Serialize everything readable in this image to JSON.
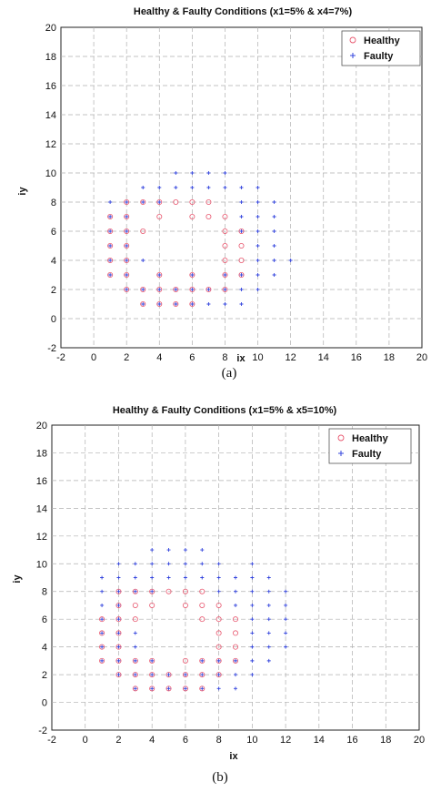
{
  "chart_data": [
    {
      "type": "scatter",
      "title": "Healthy & Faulty Conditions (x1=5% & x4=7%)",
      "xlabel": "ix",
      "ylabel": "iy",
      "caption": "(a)",
      "xlim": [
        -2,
        20
      ],
      "ylim": [
        -2,
        20
      ],
      "xticks": [
        -2,
        0,
        2,
        4,
        6,
        8,
        10,
        12,
        14,
        16,
        18,
        20
      ],
      "yticks": [
        -2,
        0,
        2,
        4,
        6,
        8,
        10,
        12,
        14,
        16,
        18,
        20
      ],
      "grid": true,
      "legend_position": "top-right",
      "series": [
        {
          "name": "Healthy",
          "marker": "circle",
          "color": "#e8566e",
          "points": [
            [
              1,
              3
            ],
            [
              1,
              4
            ],
            [
              1,
              5
            ],
            [
              1,
              6
            ],
            [
              1,
              7
            ],
            [
              2,
              2
            ],
            [
              2,
              3
            ],
            [
              2,
              4
            ],
            [
              2,
              5
            ],
            [
              2,
              6
            ],
            [
              2,
              7
            ],
            [
              2,
              8
            ],
            [
              3,
              1
            ],
            [
              3,
              2
            ],
            [
              3,
              6
            ],
            [
              3,
              8
            ],
            [
              4,
              1
            ],
            [
              4,
              2
            ],
            [
              4,
              3
            ],
            [
              4,
              7
            ],
            [
              4,
              8
            ],
            [
              5,
              1
            ],
            [
              5,
              2
            ],
            [
              5,
              8
            ],
            [
              6,
              1
            ],
            [
              6,
              2
            ],
            [
              6,
              3
            ],
            [
              6,
              7
            ],
            [
              6,
              8
            ],
            [
              7,
              2
            ],
            [
              7,
              7
            ],
            [
              7,
              8
            ],
            [
              8,
              2
            ],
            [
              8,
              3
            ],
            [
              8,
              4
            ],
            [
              8,
              5
            ],
            [
              8,
              6
            ],
            [
              8,
              7
            ],
            [
              9,
              3
            ],
            [
              9,
              4
            ],
            [
              9,
              5
            ],
            [
              9,
              6
            ]
          ]
        },
        {
          "name": "Faulty",
          "marker": "plus",
          "color": "#3344dd",
          "points": [
            [
              1,
              3
            ],
            [
              1,
              4
            ],
            [
              1,
              5
            ],
            [
              1,
              6
            ],
            [
              1,
              7
            ],
            [
              1,
              8
            ],
            [
              2,
              2
            ],
            [
              2,
              3
            ],
            [
              2,
              4
            ],
            [
              2,
              5
            ],
            [
              2,
              6
            ],
            [
              2,
              7
            ],
            [
              2,
              8
            ],
            [
              3,
              1
            ],
            [
              3,
              2
            ],
            [
              3,
              4
            ],
            [
              3,
              8
            ],
            [
              3,
              9
            ],
            [
              4,
              1
            ],
            [
              4,
              2
            ],
            [
              4,
              3
            ],
            [
              4,
              8
            ],
            [
              4,
              9
            ],
            [
              5,
              1
            ],
            [
              5,
              2
            ],
            [
              5,
              9
            ],
            [
              5,
              10
            ],
            [
              6,
              1
            ],
            [
              6,
              2
            ],
            [
              6,
              3
            ],
            [
              6,
              9
            ],
            [
              6,
              10
            ],
            [
              7,
              1
            ],
            [
              7,
              2
            ],
            [
              7,
              9
            ],
            [
              7,
              10
            ],
            [
              8,
              1
            ],
            [
              8,
              2
            ],
            [
              8,
              3
            ],
            [
              8,
              9
            ],
            [
              8,
              10
            ],
            [
              9,
              1
            ],
            [
              9,
              2
            ],
            [
              9,
              3
            ],
            [
              9,
              6
            ],
            [
              9,
              7
            ],
            [
              9,
              8
            ],
            [
              9,
              9
            ],
            [
              10,
              2
            ],
            [
              10,
              3
            ],
            [
              10,
              4
            ],
            [
              10,
              5
            ],
            [
              10,
              6
            ],
            [
              10,
              7
            ],
            [
              10,
              8
            ],
            [
              10,
              9
            ],
            [
              11,
              3
            ],
            [
              11,
              4
            ],
            [
              11,
              5
            ],
            [
              11,
              6
            ],
            [
              11,
              7
            ],
            [
              11,
              8
            ],
            [
              12,
              4
            ]
          ]
        }
      ]
    },
    {
      "type": "scatter",
      "title": "Healthy & Faulty Conditions (x1=5% & x5=10%)",
      "xlabel": "ix",
      "ylabel": "iy",
      "caption": "(b)",
      "xlim": [
        -2,
        20
      ],
      "ylim": [
        -2,
        20
      ],
      "xticks": [
        -2,
        0,
        2,
        4,
        6,
        8,
        10,
        12,
        14,
        16,
        18,
        20
      ],
      "yticks": [
        -2,
        0,
        2,
        4,
        6,
        8,
        10,
        12,
        14,
        16,
        18,
        20
      ],
      "grid": true,
      "legend_position": "top-right",
      "series": [
        {
          "name": "Healthy",
          "marker": "circle",
          "color": "#e8566e",
          "points": [
            [
              1,
              3
            ],
            [
              1,
              4
            ],
            [
              1,
              5
            ],
            [
              1,
              6
            ],
            [
              2,
              2
            ],
            [
              2,
              3
            ],
            [
              2,
              4
            ],
            [
              2,
              5
            ],
            [
              2,
              6
            ],
            [
              2,
              7
            ],
            [
              2,
              8
            ],
            [
              3,
              1
            ],
            [
              3,
              2
            ],
            [
              3,
              3
            ],
            [
              3,
              6
            ],
            [
              3,
              7
            ],
            [
              3,
              8
            ],
            [
              4,
              1
            ],
            [
              4,
              2
            ],
            [
              4,
              3
            ],
            [
              4,
              7
            ],
            [
              4,
              8
            ],
            [
              5,
              1
            ],
            [
              5,
              2
            ],
            [
              5,
              8
            ],
            [
              6,
              1
            ],
            [
              6,
              2
            ],
            [
              6,
              3
            ],
            [
              6,
              7
            ],
            [
              6,
              8
            ],
            [
              7,
              1
            ],
            [
              7,
              2
            ],
            [
              7,
              3
            ],
            [
              7,
              6
            ],
            [
              7,
              7
            ],
            [
              7,
              8
            ],
            [
              8,
              2
            ],
            [
              8,
              3
            ],
            [
              8,
              4
            ],
            [
              8,
              5
            ],
            [
              8,
              6
            ],
            [
              8,
              7
            ],
            [
              9,
              3
            ],
            [
              9,
              4
            ],
            [
              9,
              5
            ],
            [
              9,
              6
            ]
          ]
        },
        {
          "name": "Faulty",
          "marker": "plus",
          "color": "#3344dd",
          "points": [
            [
              1,
              3
            ],
            [
              1,
              4
            ],
            [
              1,
              5
            ],
            [
              1,
              6
            ],
            [
              1,
              7
            ],
            [
              1,
              8
            ],
            [
              1,
              9
            ],
            [
              2,
              2
            ],
            [
              2,
              3
            ],
            [
              2,
              4
            ],
            [
              2,
              5
            ],
            [
              2,
              6
            ],
            [
              2,
              7
            ],
            [
              2,
              8
            ],
            [
              2,
              9
            ],
            [
              2,
              10
            ],
            [
              3,
              1
            ],
            [
              3,
              2
            ],
            [
              3,
              3
            ],
            [
              3,
              4
            ],
            [
              3,
              5
            ],
            [
              3,
              8
            ],
            [
              3,
              9
            ],
            [
              3,
              10
            ],
            [
              4,
              1
            ],
            [
              4,
              2
            ],
            [
              4,
              3
            ],
            [
              4,
              8
            ],
            [
              4,
              9
            ],
            [
              4,
              10
            ],
            [
              4,
              11
            ],
            [
              5,
              1
            ],
            [
              5,
              2
            ],
            [
              5,
              9
            ],
            [
              5,
              10
            ],
            [
              5,
              11
            ],
            [
              6,
              1
            ],
            [
              6,
              2
            ],
            [
              6,
              9
            ],
            [
              6,
              10
            ],
            [
              6,
              11
            ],
            [
              7,
              1
            ],
            [
              7,
              2
            ],
            [
              7,
              3
            ],
            [
              7,
              9
            ],
            [
              7,
              10
            ],
            [
              7,
              11
            ],
            [
              8,
              1
            ],
            [
              8,
              2
            ],
            [
              8,
              3
            ],
            [
              8,
              8
            ],
            [
              8,
              9
            ],
            [
              8,
              10
            ],
            [
              9,
              1
            ],
            [
              9,
              2
            ],
            [
              9,
              3
            ],
            [
              9,
              7
            ],
            [
              9,
              8
            ],
            [
              9,
              9
            ],
            [
              10,
              2
            ],
            [
              10,
              3
            ],
            [
              10,
              4
            ],
            [
              10,
              5
            ],
            [
              10,
              6
            ],
            [
              10,
              7
            ],
            [
              10,
              8
            ],
            [
              10,
              9
            ],
            [
              10,
              10
            ],
            [
              11,
              3
            ],
            [
              11,
              4
            ],
            [
              11,
              5
            ],
            [
              11,
              6
            ],
            [
              11,
              7
            ],
            [
              11,
              8
            ],
            [
              11,
              9
            ],
            [
              12,
              4
            ],
            [
              12,
              5
            ],
            [
              12,
              6
            ],
            [
              12,
              7
            ],
            [
              12,
              8
            ]
          ]
        }
      ]
    }
  ],
  "colors": {
    "healthy": "#e8566e",
    "faulty": "#3344dd",
    "grid": "#b0b0b0",
    "axis": "#222222"
  }
}
